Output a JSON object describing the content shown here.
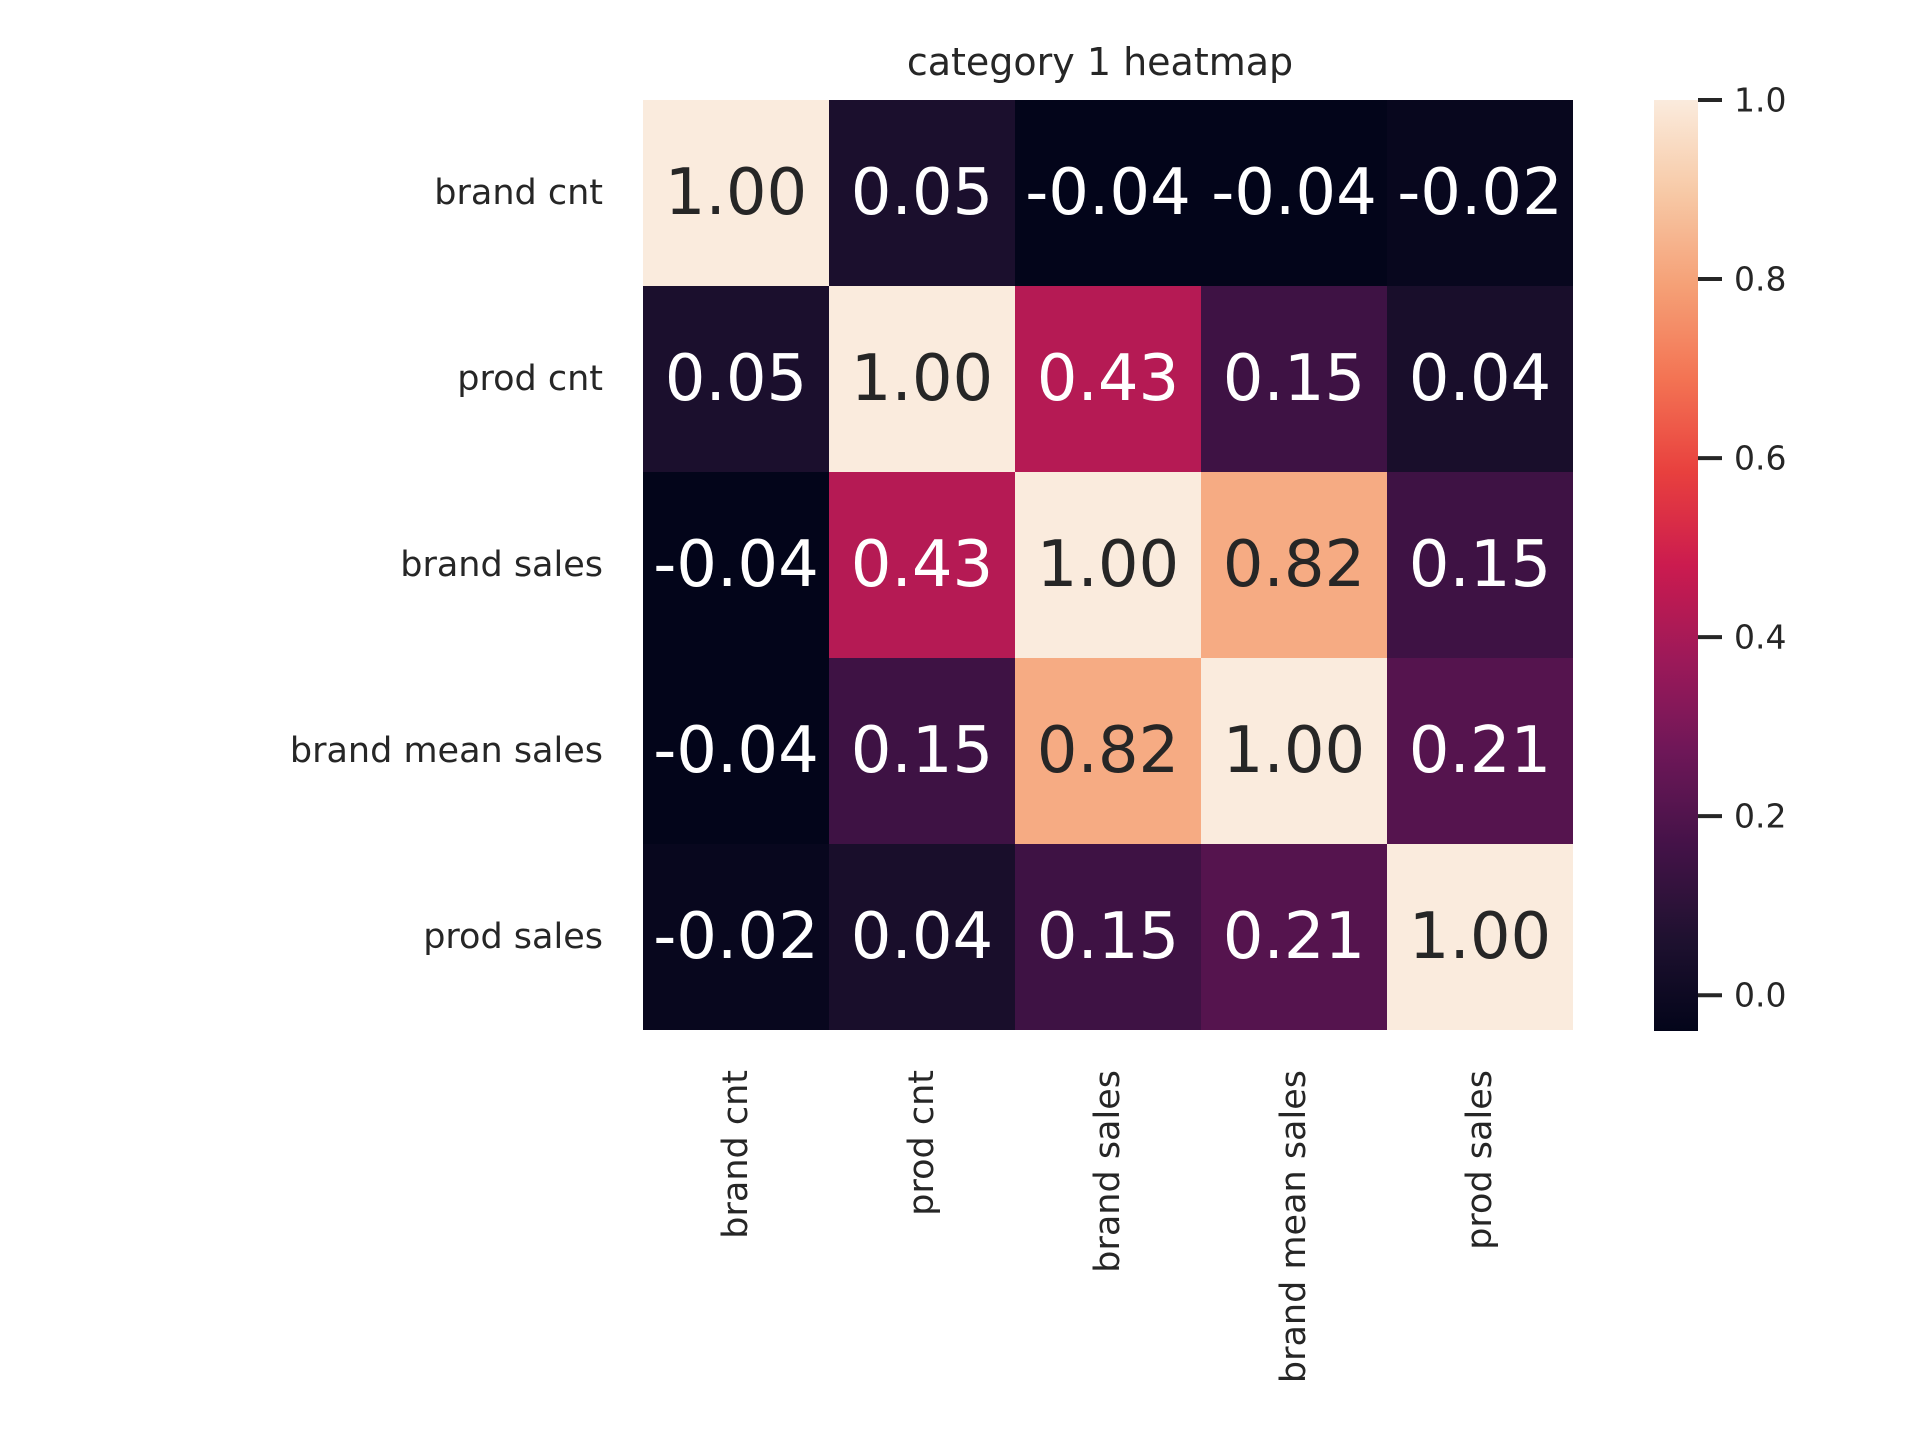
{
  "chart_data": {
    "type": "heatmap",
    "title": "category 1 heatmap",
    "rows": [
      "brand cnt",
      "prod cnt",
      "brand sales",
      "brand mean sales",
      "prod sales"
    ],
    "cols": [
      "brand cnt",
      "prod cnt",
      "brand sales",
      "brand mean sales",
      "prod sales"
    ],
    "values": [
      [
        1.0,
        0.05,
        -0.04,
        -0.04,
        -0.02
      ],
      [
        0.05,
        1.0,
        0.43,
        0.15,
        0.04
      ],
      [
        -0.04,
        0.43,
        1.0,
        0.82,
        0.15
      ],
      [
        -0.04,
        0.15,
        0.82,
        1.0,
        0.21
      ],
      [
        -0.02,
        0.04,
        0.15,
        0.21,
        1.0
      ]
    ],
    "annotation_format": "0.00",
    "colormap": "rocket",
    "vmin": -0.04,
    "vmax": 1.0,
    "colorbar": {
      "ticks": [
        0.0,
        0.2,
        0.4,
        0.6,
        0.8,
        1.0
      ],
      "tick_labels": [
        "0.0",
        "0.2",
        "0.4",
        "0.6",
        "0.8",
        "1.0"
      ],
      "placement": "right"
    },
    "xlabel_rotation": "vertical"
  }
}
